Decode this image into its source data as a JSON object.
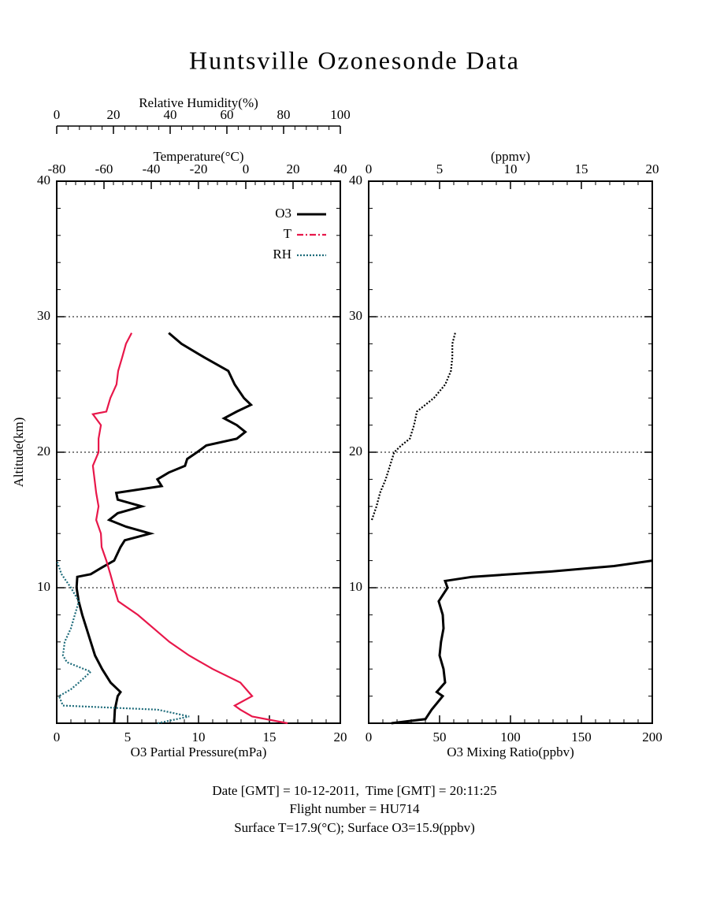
{
  "title": "Huntsville Ozonesonde Data",
  "footer": [
    "Date [GMT] = 10-12-2011,  Time [GMT] = 20:11:25",
    "Flight number = HU714",
    "Surface T=17.9(°C); Surface O3=15.9(ppbv)"
  ],
  "chart_data": [
    {
      "type": "line",
      "ylabel": "Altitude(km)",
      "ylim": [
        0,
        40
      ],
      "yticks": [
        10,
        20,
        30,
        40
      ],
      "grid": true,
      "xlabel": "O3 Partial Pressure(mPa)",
      "xlim": [
        0,
        20
      ],
      "xticks": [
        0,
        5,
        10,
        15,
        20
      ],
      "x2label": "Temperature(°C)",
      "x2lim": [
        -80,
        40
      ],
      "x2ticks": [
        -80,
        -60,
        -40,
        -20,
        0,
        20,
        40
      ],
      "x3label": "Relative Humidity(%)",
      "x3lim": [
        0,
        100
      ],
      "x3ticks": [
        0,
        20,
        40,
        60,
        80,
        100
      ],
      "legend": "upper right",
      "series": [
        {
          "name": "O3",
          "color": "#000000",
          "style": "solid",
          "axis": "x",
          "x": [
            4.05,
            4.1,
            4.3,
            4.5,
            3.8,
            3.2,
            2.7,
            2.4,
            2.1,
            1.8,
            1.55,
            1.4,
            1.45,
            2.4,
            3.2,
            4.05,
            4.5,
            4.8,
            6.6,
            4.9,
            3.7,
            4.3,
            6.0,
            4.3,
            4.2,
            7.4,
            7.1,
            7.9,
            9.05,
            9.2,
            9.9,
            10.55,
            12.7,
            13.3,
            12.7,
            11.8,
            12.7,
            13.7,
            13.2,
            12.55,
            12.1,
            10.4,
            8.8,
            7.9
          ],
          "y": [
            0,
            1,
            2,
            2.3,
            3,
            4,
            5,
            6,
            7,
            8,
            9,
            10,
            10.8,
            11,
            11.5,
            12,
            13,
            13.5,
            14,
            14.5,
            15,
            15.5,
            16,
            16.5,
            17,
            17.5,
            18,
            18.5,
            19,
            19.5,
            20,
            20.5,
            21,
            21.5,
            22,
            22.5,
            23,
            23.5,
            24,
            25,
            26,
            27,
            28,
            28.8
          ]
        },
        {
          "name": "T",
          "color": "#e8174a",
          "style": "dashdot",
          "axis": "x2",
          "x": [
            17.7,
            2.7,
            -2.3,
            -4.7,
            2.7,
            -2.3,
            -14,
            -24,
            -32.3,
            -39,
            -45.7,
            -54,
            -55.7,
            -57.3,
            -59,
            -61,
            -61.3,
            -63.3,
            -62.3,
            -63.3,
            -64,
            -64.7,
            -62.3,
            -62.3,
            -61.3,
            -64.7,
            -59,
            -57.3,
            -54.7,
            -54,
            -52.3,
            -50.7,
            -48.3
          ],
          "y": [
            0,
            0.5,
            1,
            1.3,
            2,
            3,
            4,
            5,
            6,
            7,
            8,
            9,
            10,
            11,
            12,
            13,
            14,
            15,
            16,
            17,
            18,
            19,
            20,
            21,
            22,
            22.8,
            23,
            24,
            25,
            26,
            27,
            28,
            28.8
          ]
        },
        {
          "name": "RH",
          "color": "#1d6b7a",
          "style": "dotted",
          "axis": "x3",
          "x": [
            35.6,
            46.7,
            35.6,
            2.2,
            0.8,
            5,
            7.8,
            12,
            3.6,
            2.2,
            2.8,
            5,
            6.4,
            7.8,
            5,
            1.7,
            0
          ],
          "y": [
            0,
            0.5,
            1,
            1.3,
            2,
            2.5,
            3,
            3.8,
            4.5,
            5,
            6,
            7,
            8,
            9,
            10,
            11,
            12
          ]
        }
      ]
    },
    {
      "type": "line",
      "ylim": [
        0,
        40
      ],
      "yticks": [
        10,
        20,
        30,
        40
      ],
      "grid": true,
      "xlabel": "O3 Mixing Ratio(ppbv)",
      "xlim": [
        0,
        200
      ],
      "xticks": [
        0,
        50,
        100,
        150,
        200
      ],
      "x2label": "(ppmv)",
      "x2lim": [
        0,
        20
      ],
      "x2ticks": [
        0,
        5,
        10,
        15,
        20
      ],
      "series": [
        {
          "color": "#000000",
          "style": "solid",
          "axis": "x",
          "x": [
            16,
            40,
            44.4,
            52.2,
            48,
            53.9,
            52.8,
            50,
            51,
            52.8,
            52.2,
            49.4,
            55.6,
            53.9,
            73,
            129,
            173,
            200
          ],
          "y": [
            0,
            0.3,
            1,
            2,
            2.3,
            3,
            4,
            5,
            6,
            7,
            8,
            9,
            10,
            10.5,
            10.8,
            11.2,
            11.6,
            12
          ]
        },
        {
          "color": "#000000",
          "style": "dotted",
          "axis": "x2",
          "x": [
            0.22,
            0.55,
            0.8,
            1.2,
            1.5,
            1.8,
            2.3,
            2.9,
            3.2,
            3.4,
            4.6,
            5.4,
            5.8,
            5.9,
            5.9,
            6.1
          ],
          "y": [
            15,
            16,
            17,
            18,
            19,
            20,
            20.5,
            21,
            22,
            23,
            24,
            25,
            26,
            27,
            28,
            28.8
          ]
        }
      ]
    }
  ]
}
